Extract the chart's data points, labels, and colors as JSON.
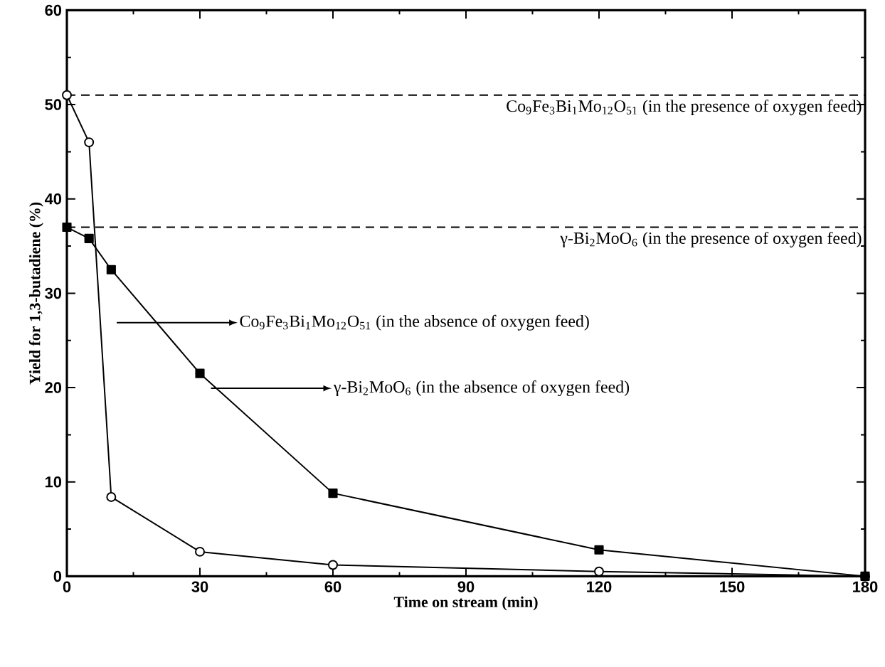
{
  "chart_data": {
    "type": "line",
    "xlabel": "Time on stream (min)",
    "ylabel": "Yield for 1,3-butadiene (%)",
    "series": [
      {
        "color": "#000000",
        "marker": "circle",
        "x": [
          0,
          5,
          10,
          30,
          60,
          120,
          180
        ],
        "values": [
          51,
          46,
          8.4,
          2.6,
          1.2,
          0.5,
          0
        ]
      },
      {
        "color": "#000000",
        "marker": "square",
        "x": [
          0,
          5,
          10,
          30,
          60,
          120,
          180
        ],
        "values": [
          37,
          35.8,
          32.5,
          21.5,
          8.8,
          2.8,
          0
        ]
      }
    ],
    "xlim": [
      0,
      180
    ],
    "ylim": [
      0,
      60
    ],
    "xticks": [
      0,
      30,
      60,
      90,
      120,
      150,
      180
    ],
    "yticks": [
      0,
      10,
      20,
      30,
      40,
      50,
      60
    ],
    "ref_lines": [
      {
        "axis": "y",
        "value": 51,
        "label": "Co$_{9}$Fe$_{3}$Bi$_{1}$Mo$_{12}$O$_{51}$ (in the presence of oxygen feed)",
        "line_style": "dashed"
      },
      {
        "axis": "y",
        "value": 37,
        "label": "γ-Bi$_{2}$MoO$_{6}$ (in the presence of oxygen feed)",
        "line_style": "dashed"
      }
    ],
    "annotations": [
      "Co$_{9}$Fe$_{3}$Bi$_{1}$Mo$_{12}$O$_{51}$ (in the absence of oxygen feed)",
      "γ-Bi$_{2}$MoO$_{6}$ (in the absence of oxygen feed)"
    ],
    "grid": false,
    "line_style": "solid"
  }
}
